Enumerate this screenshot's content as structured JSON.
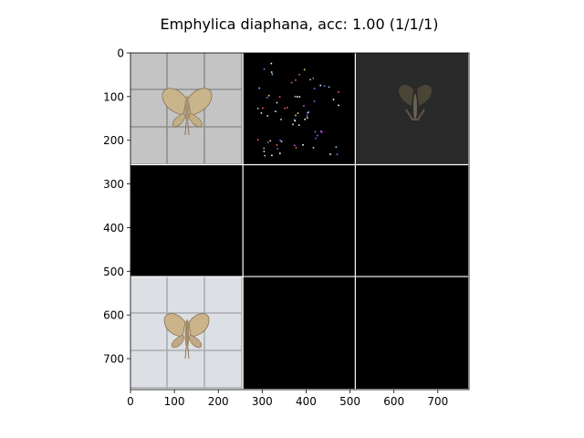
{
  "chart_data": {
    "type": "heatmap",
    "title": "Emphylica diaphana, acc: 1.00 (1/1/1)",
    "xlim": [
      0,
      771
    ],
    "ylim": [
      771,
      0
    ],
    "x_ticks": [
      0,
      100,
      200,
      300,
      400,
      500,
      600,
      700
    ],
    "y_ticks": [
      0,
      100,
      200,
      300,
      400,
      500,
      600,
      700
    ],
    "grid": {
      "rows": 3,
      "cols": 3,
      "tile_size": 256,
      "separator_color": "#ffffff"
    },
    "tiles": [
      {
        "row": 0,
        "col": 0,
        "content": "moth-photo-grid-background",
        "bg": "#bfc0bf"
      },
      {
        "row": 0,
        "col": 1,
        "content": "sparse-colored-attribution-dots",
        "bg": "#000000"
      },
      {
        "row": 0,
        "col": 2,
        "content": "dark-masked-moth",
        "bg": "#2a2a2a"
      },
      {
        "row": 1,
        "col": 0,
        "content": "empty",
        "bg": "#000000"
      },
      {
        "row": 1,
        "col": 1,
        "content": "empty",
        "bg": "#000000"
      },
      {
        "row": 1,
        "col": 2,
        "content": "empty",
        "bg": "#000000"
      },
      {
        "row": 2,
        "col": 0,
        "content": "moth-photo-light-grid-background",
        "bg": "#d9dce0"
      },
      {
        "row": 2,
        "col": 1,
        "content": "empty",
        "bg": "#000000"
      },
      {
        "row": 2,
        "col": 2,
        "content": "empty",
        "bg": "#000000"
      }
    ]
  }
}
